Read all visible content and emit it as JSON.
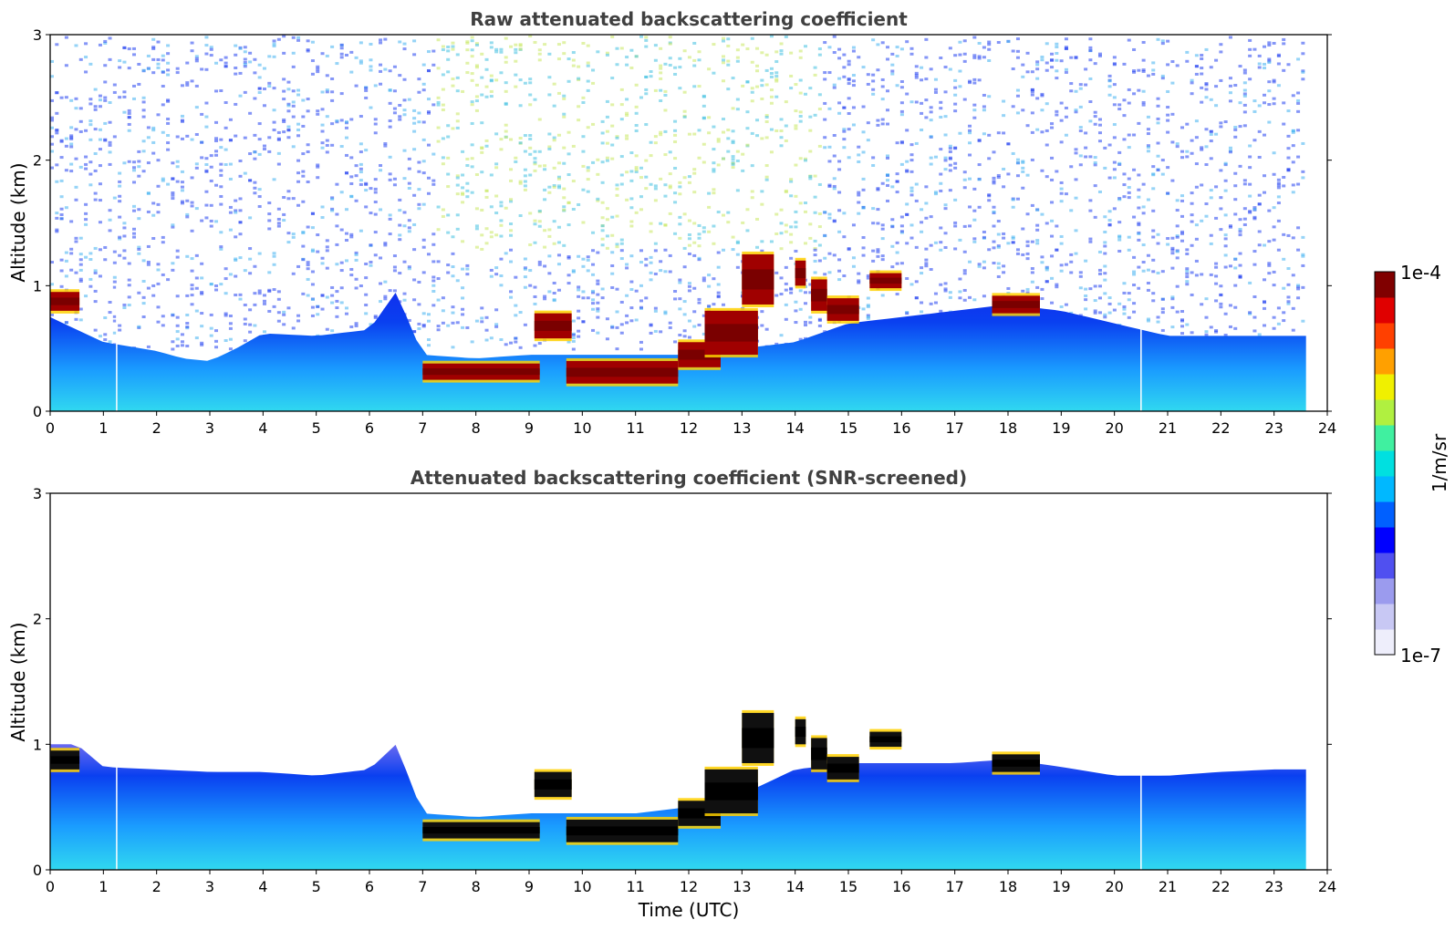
{
  "chart_data": [
    {
      "type": "heatmap",
      "title": "Raw attenuated backscattering coefficient",
      "xlabel": "",
      "ylabel": "Altitude (km)",
      "xlim": [
        0,
        24
      ],
      "ylim": [
        0,
        3
      ],
      "xticks": [
        "0",
        "1",
        "2",
        "3",
        "4",
        "5",
        "6",
        "7",
        "8",
        "9",
        "10",
        "11",
        "12",
        "13",
        "14",
        "15",
        "16",
        "17",
        "18",
        "19",
        "20",
        "21",
        "22",
        "23",
        "24"
      ],
      "yticks": [
        "0",
        "1",
        "2",
        "3"
      ],
      "data_end_hour": 23.6,
      "screened": false,
      "boundary_layer_top_km": [
        [
          0,
          0.75
        ],
        [
          0.5,
          0.65
        ],
        [
          1,
          0.55
        ],
        [
          2,
          0.48
        ],
        [
          2.5,
          0.42
        ],
        [
          3,
          0.4
        ],
        [
          3.5,
          0.5
        ],
        [
          4,
          0.62
        ],
        [
          5,
          0.6
        ],
        [
          6,
          0.65
        ],
        [
          6.5,
          0.95
        ],
        [
          7,
          0.45
        ],
        [
          8,
          0.42
        ],
        [
          9,
          0.45
        ],
        [
          10,
          0.45
        ],
        [
          11,
          0.45
        ],
        [
          12,
          0.45
        ],
        [
          13,
          0.5
        ],
        [
          14,
          0.55
        ],
        [
          15,
          0.7
        ],
        [
          16,
          0.75
        ],
        [
          17,
          0.8
        ],
        [
          18,
          0.85
        ],
        [
          19,
          0.8
        ],
        [
          20,
          0.7
        ],
        [
          21,
          0.6
        ],
        [
          22,
          0.6
        ],
        [
          23,
          0.6
        ],
        [
          23.6,
          0.6
        ]
      ],
      "cloud_layers": [
        {
          "t0": 0.0,
          "t1": 0.55,
          "z0": 0.8,
          "z1": 0.95
        },
        {
          "t0": 7.0,
          "t1": 9.2,
          "z0": 0.25,
          "z1": 0.38
        },
        {
          "t0": 9.1,
          "t1": 9.8,
          "z0": 0.58,
          "z1": 0.78
        },
        {
          "t0": 9.7,
          "t1": 11.8,
          "z0": 0.22,
          "z1": 0.4
        },
        {
          "t0": 11.8,
          "t1": 12.6,
          "z0": 0.35,
          "z1": 0.55
        },
        {
          "t0": 12.3,
          "t1": 13.3,
          "z0": 0.45,
          "z1": 0.8
        },
        {
          "t0": 13.0,
          "t1": 13.6,
          "z0": 0.85,
          "z1": 1.25
        },
        {
          "t0": 14.0,
          "t1": 14.2,
          "z0": 1.0,
          "z1": 1.2
        },
        {
          "t0": 14.3,
          "t1": 14.6,
          "z0": 0.8,
          "z1": 1.05
        },
        {
          "t0": 14.6,
          "t1": 15.2,
          "z0": 0.72,
          "z1": 0.9
        },
        {
          "t0": 15.4,
          "t1": 16.0,
          "z0": 0.98,
          "z1": 1.1
        },
        {
          "t0": 17.7,
          "t1": 18.6,
          "z0": 0.78,
          "z1": 0.92
        }
      ],
      "dropouts_hour": [
        1.25,
        20.5
      ]
    },
    {
      "type": "heatmap",
      "title": "Attenuated backscattering coefficient (SNR-screened)",
      "xlabel": "Time (UTC)",
      "ylabel": "Altitude (km)",
      "xlim": [
        0,
        24
      ],
      "ylim": [
        0,
        3
      ],
      "xticks": [
        "0",
        "1",
        "2",
        "3",
        "4",
        "5",
        "6",
        "7",
        "8",
        "9",
        "10",
        "11",
        "12",
        "13",
        "14",
        "15",
        "16",
        "17",
        "18",
        "19",
        "20",
        "21",
        "22",
        "23",
        "24"
      ],
      "yticks": [
        "0",
        "1",
        "2",
        "3"
      ],
      "data_end_hour": 23.6,
      "screened": true,
      "boundary_layer_top_km": [
        [
          0,
          1.0
        ],
        [
          0.5,
          1.0
        ],
        [
          1,
          0.82
        ],
        [
          2,
          0.8
        ],
        [
          3,
          0.78
        ],
        [
          4,
          0.78
        ],
        [
          5,
          0.75
        ],
        [
          6,
          0.8
        ],
        [
          6.5,
          1.0
        ],
        [
          7,
          0.45
        ],
        [
          8,
          0.42
        ],
        [
          9,
          0.45
        ],
        [
          10,
          0.45
        ],
        [
          11,
          0.45
        ],
        [
          12,
          0.5
        ],
        [
          13,
          0.6
        ],
        [
          14,
          0.8
        ],
        [
          15,
          0.85
        ],
        [
          16,
          0.85
        ],
        [
          17,
          0.85
        ],
        [
          18,
          0.88
        ],
        [
          19,
          0.82
        ],
        [
          20,
          0.75
        ],
        [
          21,
          0.75
        ],
        [
          22,
          0.78
        ],
        [
          23,
          0.8
        ],
        [
          23.6,
          0.8
        ]
      ],
      "cloud_layers": [
        {
          "t0": 0.0,
          "t1": 0.55,
          "z0": 0.8,
          "z1": 0.95
        },
        {
          "t0": 7.0,
          "t1": 9.2,
          "z0": 0.25,
          "z1": 0.38
        },
        {
          "t0": 9.1,
          "t1": 9.8,
          "z0": 0.58,
          "z1": 0.78
        },
        {
          "t0": 9.7,
          "t1": 11.8,
          "z0": 0.22,
          "z1": 0.4
        },
        {
          "t0": 11.8,
          "t1": 12.6,
          "z0": 0.35,
          "z1": 0.55
        },
        {
          "t0": 12.3,
          "t1": 13.3,
          "z0": 0.45,
          "z1": 0.8
        },
        {
          "t0": 13.0,
          "t1": 13.6,
          "z0": 0.85,
          "z1": 1.25
        },
        {
          "t0": 14.0,
          "t1": 14.2,
          "z0": 1.0,
          "z1": 1.2
        },
        {
          "t0": 14.3,
          "t1": 14.6,
          "z0": 0.8,
          "z1": 1.05
        },
        {
          "t0": 14.6,
          "t1": 15.2,
          "z0": 0.72,
          "z1": 0.9
        },
        {
          "t0": 15.4,
          "t1": 16.0,
          "z0": 0.98,
          "z1": 1.1
        },
        {
          "t0": 17.7,
          "t1": 18.6,
          "z0": 0.78,
          "z1": 0.92
        }
      ],
      "dropouts_hour": [
        1.25,
        20.5
      ]
    }
  ],
  "colorbar": {
    "label": "1/m/sr",
    "max_label": "1e-4",
    "min_label": "1e-7",
    "colors": [
      "#eeeefb",
      "#c8c8f4",
      "#9b9bee",
      "#5050f0",
      "#0000ff",
      "#0060ff",
      "#00b8ff",
      "#00e0e0",
      "#40f0a0",
      "#b0f040",
      "#f0f000",
      "#ffa000",
      "#ff4000",
      "#e00000",
      "#800000"
    ]
  }
}
